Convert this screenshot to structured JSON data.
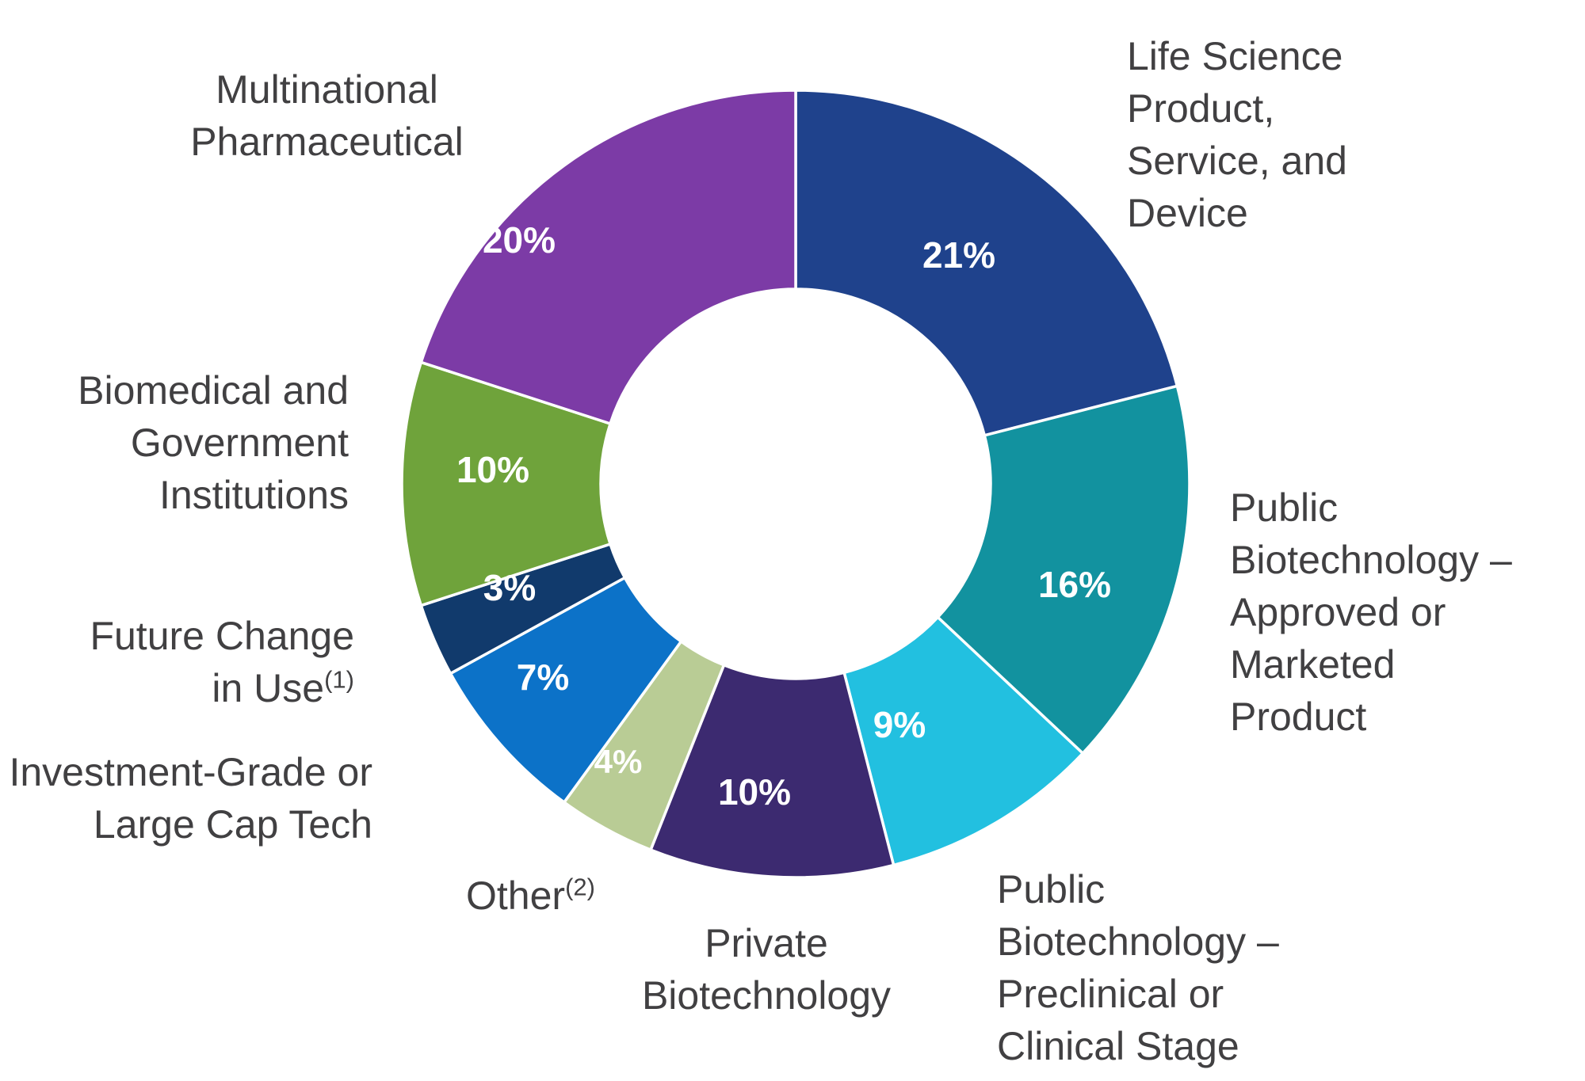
{
  "chart_data": {
    "type": "pie",
    "subtype": "donut",
    "title": "",
    "unit": "%",
    "direction": "clockwise",
    "start_angle_deg": 0,
    "background": "#FFFFFF",
    "text_color": "#414042",
    "value_label_color": "#FFFFFF",
    "segments": [
      {
        "label": "Life Science Product, Service, and Device",
        "label_lines": [
          "Life Science",
          "Product,",
          "Service, and",
          "Device"
        ],
        "value": 21,
        "value_label": "21%",
        "color": "#1F428C"
      },
      {
        "label": "Public Biotechnology – Approved or Marketed Product",
        "label_lines": [
          "Public",
          "Biotechnology –",
          "Approved or",
          "Marketed",
          "Product"
        ],
        "value": 16,
        "value_label": "16%",
        "color": "#12929F"
      },
      {
        "label": "Public Biotechnology – Preclinical or Clinical Stage",
        "label_lines": [
          "Public",
          "Biotechnology –",
          "Preclinical or",
          "Clinical Stage"
        ],
        "value": 9,
        "value_label": "9%",
        "color": "#22C0E0"
      },
      {
        "label": "Private Biotechnology",
        "label_lines": [
          "Private",
          "Biotechnology"
        ],
        "value": 10,
        "value_label": "10%",
        "color": "#3C2A70"
      },
      {
        "label": "Other",
        "sup": "(2)",
        "label_lines": [
          "Other"
        ],
        "value": 4,
        "value_label": "4%",
        "color": "#B9CC95"
      },
      {
        "label": "Investment-Grade or Large Cap Tech",
        "label_lines": [
          "Investment-Grade or",
          "Large Cap Tech"
        ],
        "value": 7,
        "value_label": "7%",
        "color": "#0C72C8"
      },
      {
        "label": "Future Change in Use",
        "sup": "(1)",
        "label_lines": [
          "Future Change",
          "in Use"
        ],
        "value": 3,
        "value_label": "3%",
        "color": "#113A6C"
      },
      {
        "label": "Biomedical and Government Institutions",
        "label_lines": [
          "Biomedical and",
          "Government",
          "Institutions"
        ],
        "value": 10,
        "value_label": "10%",
        "color": "#6FA33B"
      },
      {
        "label": "Multinational Pharmaceutical",
        "label_lines": [
          "Multinational",
          "Pharmaceutical"
        ],
        "value": 20,
        "value_label": "20%",
        "color": "#7C3BA6"
      }
    ],
    "value_labels": [
      "21%",
      "16%",
      "9%",
      "10%",
      "4%",
      "7%",
      "3%",
      "10%",
      "20%"
    ]
  }
}
